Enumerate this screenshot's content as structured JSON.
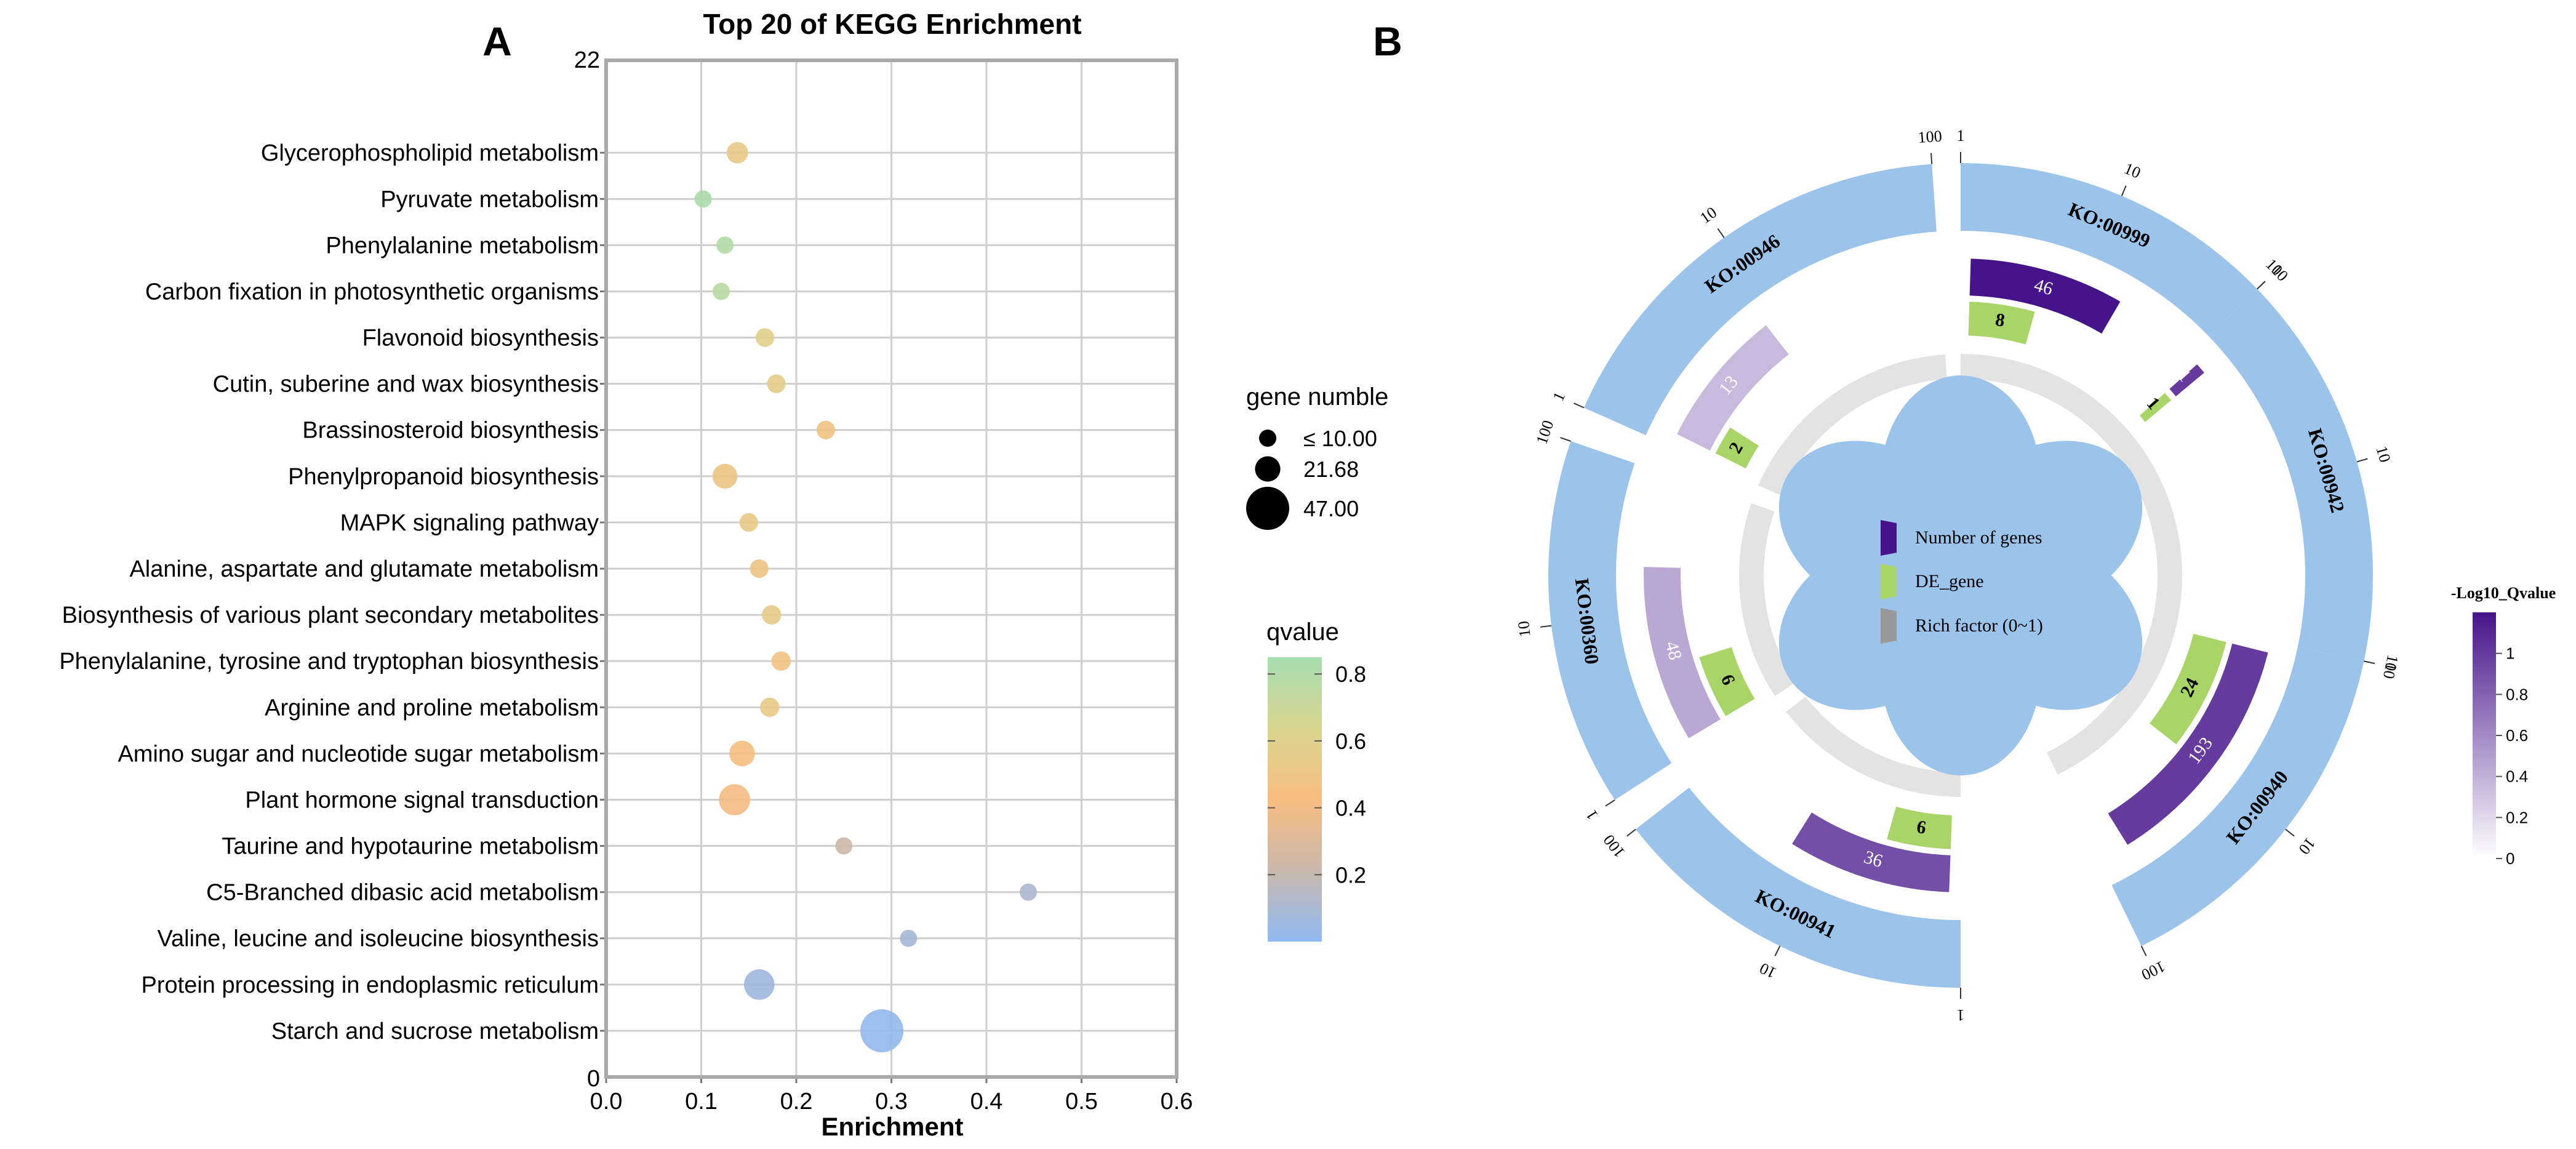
{
  "panel_a_letter": "A",
  "panel_b_letter": "B",
  "chart_data": [
    {
      "type": "scatter",
      "title": "Top 20 of KEGG Enrichment",
      "xlabel": "Enrichment",
      "ylabel": "",
      "xlim": [
        0,
        0.6
      ],
      "x_ticks": [
        "0.0",
        "0.1",
        "0.2",
        "0.3",
        "0.4",
        "0.5",
        "0.6"
      ],
      "y_axis_top_label": "22",
      "y_axis_bottom_label": "0",
      "grid": true,
      "categories": [
        "Glycerophospholipid metabolism",
        "Pyruvate metabolism",
        "Phenylalanine metabolism",
        "Carbon fixation in photosynthetic organisms",
        "Flavonoid biosynthesis",
        "Cutin, suberine and wax biosynthesis",
        "Brassinosteroid biosynthesis",
        "Phenylpropanoid biosynthesis",
        "MAPK signaling pathway",
        "Alanine, aspartate and glutamate metabolism",
        "Biosynthesis of various plant secondary metabolites",
        "Phenylalanine, tyrosine and tryptophan biosynthesis",
        "Arginine and proline metabolism",
        "Amino sugar and nucleotide sugar metabolism",
        "Plant hormone signal transduction",
        "Taurine and hypotaurine metabolism",
        "C5-Branched dibasic acid metabolism",
        "Valine, leucine and isoleucine biosynthesis",
        "Protein processing in endoplasmic reticulum",
        "Starch and sucrose metabolism"
      ],
      "x": [
        0.138,
        0.102,
        0.125,
        0.121,
        0.167,
        0.179,
        0.231,
        0.125,
        0.15,
        0.161,
        0.174,
        0.184,
        0.172,
        0.143,
        0.135,
        0.25,
        0.444,
        0.318,
        0.161,
        0.29
      ],
      "gene_number": [
        16,
        10,
        10,
        10,
        12,
        12,
        12,
        21,
        12,
        12,
        13,
        13,
        13,
        22,
        30,
        10,
        10,
        10,
        29,
        47
      ],
      "qvalue": [
        0.5,
        0.82,
        0.78,
        0.76,
        0.55,
        0.52,
        0.45,
        0.48,
        0.5,
        0.48,
        0.52,
        0.45,
        0.5,
        0.42,
        0.38,
        0.22,
        0.1,
        0.08,
        0.06,
        0.02
      ],
      "size_legend": {
        "title": "gene numble",
        "entries": [
          {
            "label": "≤ 10.00",
            "value": 10
          },
          {
            "label": "21.68",
            "value": 21.68
          },
          {
            "label": "47.00",
            "value": 47
          }
        ]
      },
      "color_legend": {
        "title": "qvalue",
        "ticks": [
          "0.8",
          "0.6",
          "0.4",
          "0.2"
        ],
        "range": [
          0,
          0.85
        ],
        "colors": {
          "low": "#8fbaf2",
          "mid_low": "#c9b8ad",
          "mid": "#f7bd80",
          "mid_high": "#d9d690",
          "high": "#a6dcb0"
        }
      }
    },
    {
      "type": "circos",
      "center_legend": [
        {
          "label": "Number of genes",
          "color": "#46148a"
        },
        {
          "label": "DE_gene",
          "color": "#a8d468"
        },
        {
          "label": "Rich factor (0~1)",
          "color": "#999999"
        }
      ],
      "sectors": [
        {
          "id": "KO:00999",
          "start": 0,
          "end": 46,
          "ticks": [
            "1",
            "10",
            "100"
          ],
          "number_of_genes": 46,
          "de_gene": 8,
          "neglog10_q": 1.2
        },
        {
          "id": "KO:00942",
          "start": 46,
          "end": 102,
          "ticks": [
            "1",
            "10",
            "100"
          ],
          "number_of_genes": 1,
          "de_gene": 1,
          "neglog10_q": 1.0
        },
        {
          "id": "KO:00940",
          "start": 102,
          "end": 154,
          "ticks": [
            "1",
            "10",
            "100"
          ],
          "number_of_genes": 193,
          "de_gene": 24,
          "neglog10_q": 1.0
        },
        {
          "id": "KO:00941",
          "start": 180,
          "end": 232,
          "ticks": [
            "1",
            "10",
            "100"
          ],
          "number_of_genes": 36,
          "de_gene": 6,
          "neglog10_q": 0.9
        },
        {
          "id": "KO:00360",
          "start": 237,
          "end": 289,
          "ticks": [
            "1",
            "10",
            "100"
          ],
          "number_of_genes": 48,
          "de_gene": 6,
          "neglog10_q": 0.45
        },
        {
          "id": "KO:00946",
          "start": 294,
          "end": 356,
          "ticks": [
            "1",
            "10",
            "100"
          ],
          "number_of_genes": 13,
          "de_gene": 2,
          "neglog10_q": 0.35
        }
      ],
      "colorbar": {
        "title": "-Log10_Qvalue",
        "ticks": [
          "1",
          "0.8",
          "0.6",
          "0.4",
          "0.2",
          "0"
        ],
        "range": [
          0,
          1.2
        ],
        "color_low": "#ffffff",
        "color_high": "#46148a"
      }
    }
  ]
}
